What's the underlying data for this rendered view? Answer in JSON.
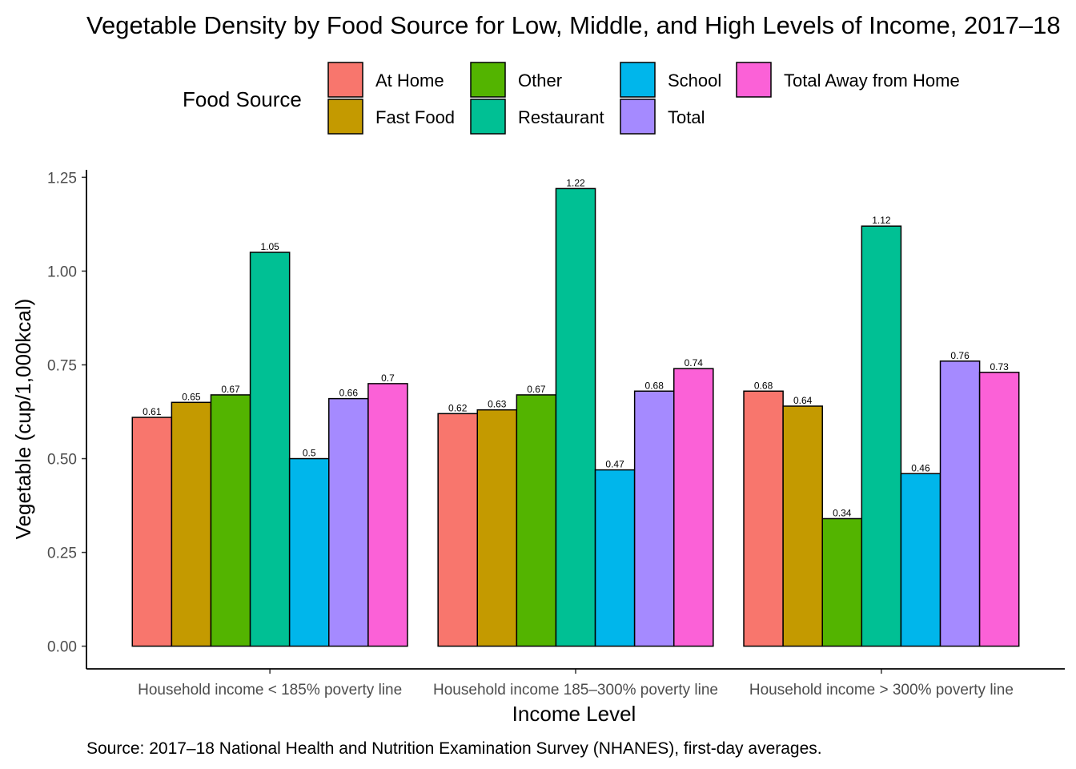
{
  "chart_data": {
    "type": "bar",
    "title": "Vegetable Density by Food Source for Low, Middle, and High Levels of Income, 2017–18",
    "xlabel": "Income Level",
    "ylabel": "Vegetable (cup/1,000kcal)",
    "caption": "Source: 2017–18 National Health and Nutrition Examination Survey (NHANES), first-day averages.",
    "legend_title": "Food Source",
    "legend_position": "top",
    "grid": false,
    "ylim": [
      -0.0605,
      1.27
    ],
    "yticks": [
      0,
      0.25,
      0.5,
      0.75,
      1.0,
      1.25
    ],
    "ytick_labels": [
      "0.00",
      "0.25",
      "0.50",
      "0.75",
      "1.00",
      "1.25"
    ],
    "categories": [
      "Household income < 185% poverty line",
      "Household income 185–300% poverty line",
      "Household income > 300% poverty line"
    ],
    "series": [
      {
        "name": "At Home",
        "color": "#F8766D",
        "values": [
          0.61,
          0.62,
          0.68
        ],
        "labels": [
          "0.61",
          "0.62",
          "0.68"
        ]
      },
      {
        "name": "Fast Food",
        "color": "#C49A00",
        "values": [
          0.65,
          0.63,
          0.64
        ],
        "labels": [
          "0.65",
          "0.63",
          "0.64"
        ]
      },
      {
        "name": "Other",
        "color": "#53B400",
        "values": [
          0.67,
          0.67,
          0.34
        ],
        "labels": [
          "0.67",
          "0.67",
          "0.34"
        ]
      },
      {
        "name": "Restaurant",
        "color": "#00C094",
        "values": [
          1.05,
          1.22,
          1.12
        ],
        "labels": [
          "1.05",
          "1.22",
          "1.12"
        ]
      },
      {
        "name": "School",
        "color": "#00B6EB",
        "values": [
          0.5,
          0.47,
          0.46
        ],
        "labels": [
          "0.5",
          "0.47",
          "0.46"
        ]
      },
      {
        "name": "Total",
        "color": "#A58AFF",
        "values": [
          0.66,
          0.68,
          0.76
        ],
        "labels": [
          "0.66",
          "0.68",
          "0.76"
        ]
      },
      {
        "name": "Total Away from Home",
        "color": "#FB61D7",
        "values": [
          0.7,
          0.74,
          0.73
        ],
        "labels": [
          "0.7",
          "0.74",
          "0.73"
        ]
      }
    ],
    "legend_order": [
      "At Home",
      "Other",
      "School",
      "Total Away from Home",
      "Fast Food",
      "Restaurant",
      "Total"
    ]
  }
}
